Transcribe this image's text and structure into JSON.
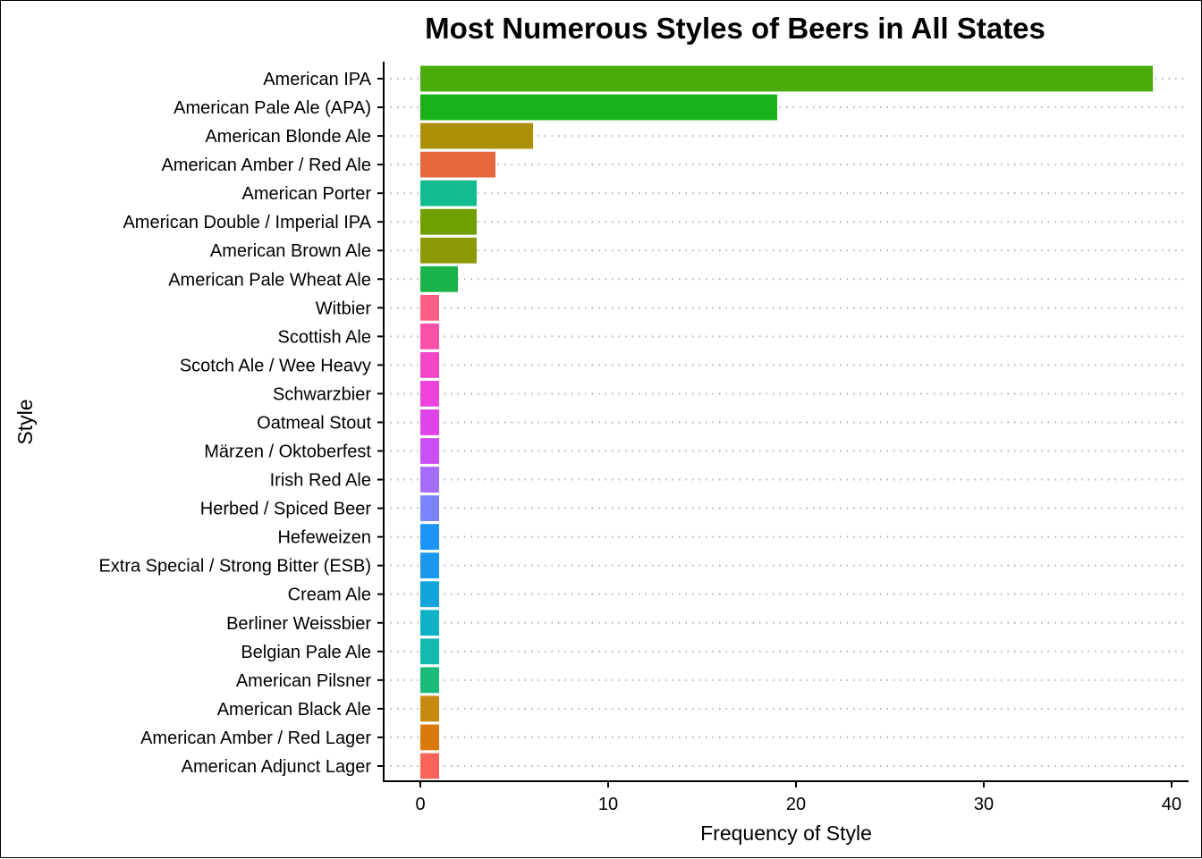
{
  "chart_data": {
    "type": "bar",
    "orientation": "horizontal",
    "title": "Most Numerous Styles of Beers in All States",
    "xlabel": "Frequency of Style",
    "ylabel": "Style",
    "xlim": [
      0,
      40
    ],
    "xticks": [
      "0",
      "10",
      "20",
      "30",
      "40"
    ],
    "grid": "dotted horizontal",
    "legend": "none",
    "categories": [
      "American IPA",
      "American Pale Ale (APA)",
      "American Blonde Ale",
      "American Amber / Red Ale",
      "American Porter",
      "American Double / Imperial IPA",
      "American Brown Ale",
      "American Pale Wheat Ale",
      "Witbier",
      "Scottish Ale",
      "Scotch Ale / Wee Heavy",
      "Schwarzbier",
      "Oatmeal Stout",
      "Märzen / Oktoberfest",
      "Irish Red Ale",
      "Herbed / Spiced Beer",
      "Hefeweizen",
      "Extra Special / Strong Bitter (ESB)",
      "Cream Ale",
      "Berliner Weissbier",
      "Belgian Pale Ale",
      "American Pilsner",
      "American Black Ale",
      "American Amber / Red Lager",
      "American Adjunct Lager"
    ],
    "values": [
      39,
      19,
      6,
      4,
      3,
      3,
      3,
      2,
      1,
      1,
      1,
      1,
      1,
      1,
      1,
      1,
      1,
      1,
      1,
      1,
      1,
      1,
      1,
      1,
      1
    ],
    "colors": [
      "#4aac0a",
      "#19b11a",
      "#ab8f05",
      "#e4683c",
      "#15bb90",
      "#70a000",
      "#8c9a08",
      "#1ab34a",
      "#fb5f84",
      "#fb4fa8",
      "#f447c8",
      "#ed43dc",
      "#e043ea",
      "#ca4ff7",
      "#a66cfc",
      "#7b84fb",
      "#1d94fb",
      "#1b98ec",
      "#10a4dc",
      "#0eb2c5",
      "#13b8af",
      "#18bb78",
      "#c88910",
      "#da7a0d",
      "#f8645a"
    ]
  }
}
